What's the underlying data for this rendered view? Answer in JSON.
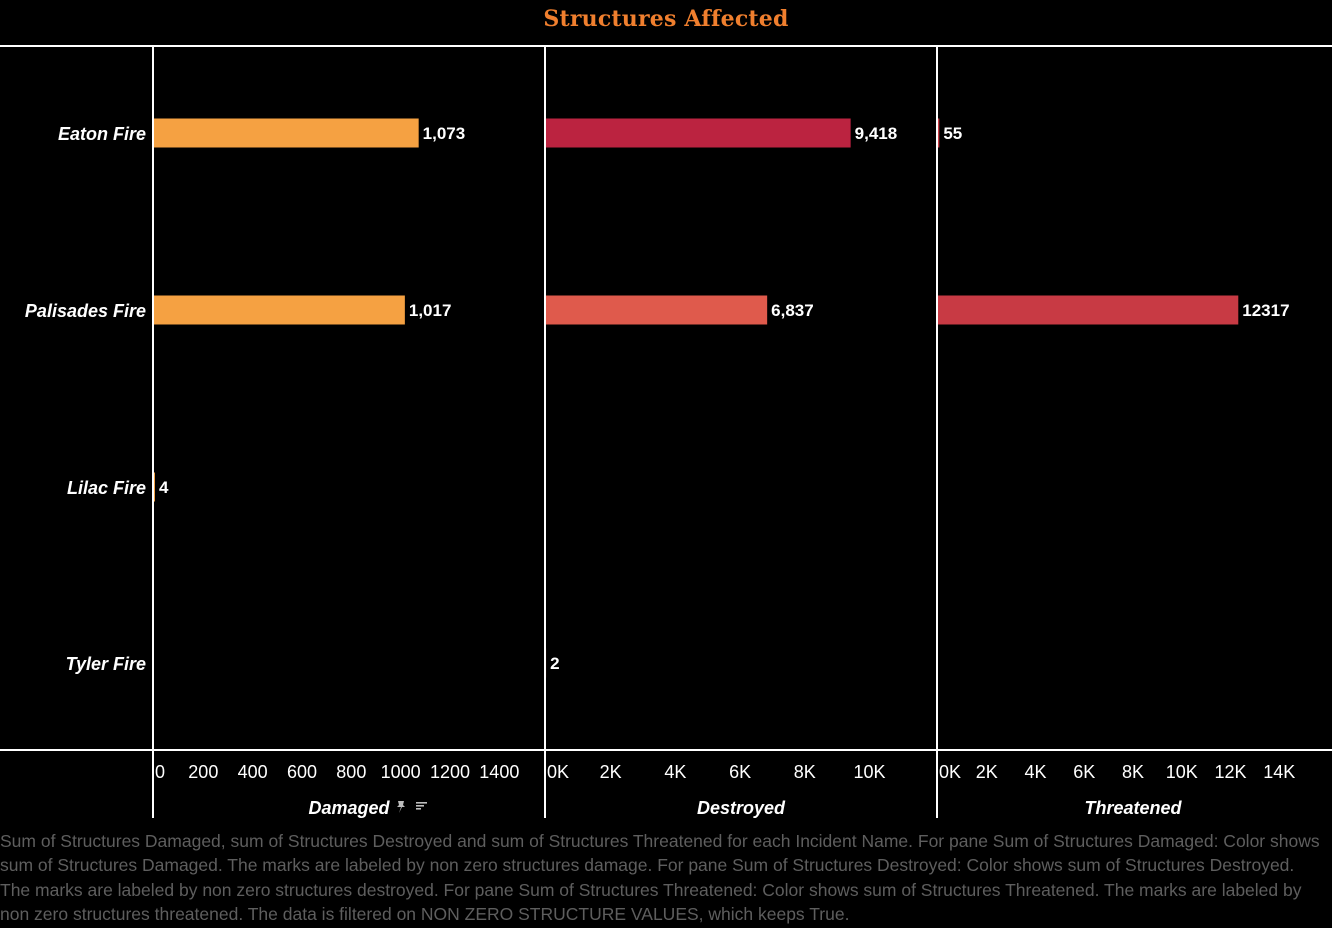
{
  "chart_data": {
    "type": "bar",
    "title": "Structures Affected",
    "categories": [
      "Eaton Fire",
      "Palisades Fire",
      "Lilac Fire",
      "Tyler Fire"
    ],
    "panels": [
      {
        "name": "Damaged",
        "values": [
          1073,
          1017,
          4,
          null
        ],
        "labels": [
          "1,073",
          "1,017",
          "4",
          ""
        ],
        "colors": [
          "#f5a142",
          "#f5a142",
          "#f5a142",
          "#f5a142"
        ],
        "xlim": [
          0,
          1500
        ],
        "ticks": [
          0,
          200,
          400,
          600,
          800,
          1000,
          1200,
          1400
        ],
        "tick_labels": [
          "0",
          "200",
          "400",
          "600",
          "800",
          "1000",
          "1200",
          "1400"
        ],
        "icons": [
          "pin-icon",
          "sort-icon"
        ]
      },
      {
        "name": "Destroyed",
        "values": [
          9418,
          6837,
          null,
          2
        ],
        "labels": [
          "9,418",
          "6,837",
          "",
          "2"
        ],
        "colors": [
          "#bb2340",
          "#df5a4c",
          "#df5a4c",
          "#df5a4c"
        ],
        "xlim": [
          0,
          11500
        ],
        "ticks": [
          0,
          2000,
          4000,
          6000,
          8000,
          10000
        ],
        "tick_labels": [
          "0K",
          "2K",
          "4K",
          "6K",
          "8K",
          "10K"
        ]
      },
      {
        "name": "Threatened",
        "values": [
          55,
          12317,
          null,
          null
        ],
        "labels": [
          "55",
          "12317",
          "",
          ""
        ],
        "colors": [
          "#c83a44",
          "#c83a44",
          "#c83a44",
          "#c83a44"
        ],
        "xlim": [
          0,
          15300
        ],
        "ticks": [
          0,
          2000,
          4000,
          6000,
          8000,
          10000,
          12000,
          14000
        ],
        "tick_labels": [
          "0K",
          "2K",
          "4K",
          "6K",
          "8K",
          "10K",
          "12K",
          "14K"
        ]
      }
    ],
    "grid": false,
    "legend": "none"
  },
  "caption": "Sum of Structures Damaged, sum of Structures Destroyed and sum of Structures Threatened for each Incident Name.  For pane Sum of Structures Damaged:  Color shows sum of Structures Damaged.  The marks are labeled by non zero structures damage.  For pane Sum of Structures Destroyed:  Color shows sum of Structures Destroyed.  The marks are labeled by non zero structures destroyed.  For pane Sum of Structures Threatened:  Color shows sum of Structures Threatened.  The marks are labeled by non zero structures threatened. The data is filtered on NON ZERO STRUCTURE VALUES, which keeps True."
}
